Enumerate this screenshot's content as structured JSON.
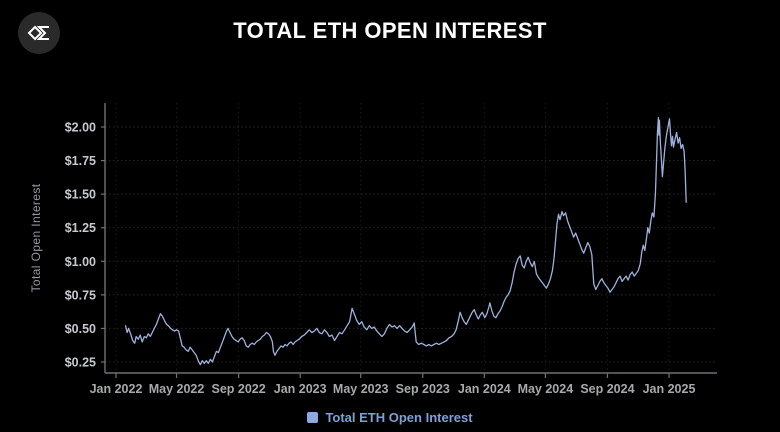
{
  "header": {
    "logo": "sigma-diamond-logo",
    "title": "TOTAL ETH OPEN INTEREST"
  },
  "legend": {
    "label": "Total ETH Open Interest",
    "swatch_color": "#8fa9dc"
  },
  "colors": {
    "background": "#000000",
    "axis": "#6e7174",
    "grid_h": "rgba(255,255,255,0.16)",
    "grid_v": "rgba(255,255,255,0.10)",
    "title_text": "#ffffff",
    "ytick_text": "#c7cacd",
    "xtick_text": "#a6a9ab",
    "line": "#9db1dd"
  },
  "chart_data": {
    "type": "line",
    "title": "TOTAL ETH OPEN INTEREST",
    "xlabel": "",
    "ylabel": "Total Open Interest",
    "grid": true,
    "legend_position": "bottom",
    "ylim": [
      0.17,
      2.16
    ],
    "xlim": [
      "2021-12-10",
      "2025-04-05"
    ],
    "yticks": [
      0.25,
      0.5,
      0.75,
      1.0,
      1.25,
      1.5,
      1.75,
      2.0
    ],
    "ytick_labels": [
      "$0.25",
      "$0.50",
      "$0.75",
      "$1.00",
      "$1.25",
      "$1.50",
      "$1.75",
      "$2.00"
    ],
    "xticks": [
      "2022-01-01",
      "2022-05-01",
      "2022-09-01",
      "2023-01-01",
      "2023-05-01",
      "2023-09-01",
      "2024-01-01",
      "2024-05-01",
      "2024-09-01",
      "2025-01-01"
    ],
    "xtick_labels": [
      "Jan 2022",
      "May 2022",
      "Sep 2022",
      "Jan 2023",
      "May 2023",
      "Sep 2023",
      "Jan 2024",
      "May 2024",
      "Sep 2024",
      "Jan 2025"
    ],
    "series": [
      {
        "name": "Total ETH Open Interest",
        "color": "#9db1dd",
        "x": [
          "2022-01-20",
          "2022-01-23",
          "2022-01-26",
          "2022-01-30",
          "2022-02-03",
          "2022-02-07",
          "2022-02-10",
          "2022-02-14",
          "2022-02-18",
          "2022-02-22",
          "2022-02-26",
          "2022-03-02",
          "2022-03-06",
          "2022-03-10",
          "2022-03-14",
          "2022-03-18",
          "2022-03-22",
          "2022-03-26",
          "2022-03-30",
          "2022-04-03",
          "2022-04-07",
          "2022-04-11",
          "2022-04-15",
          "2022-04-19",
          "2022-04-23",
          "2022-04-27",
          "2022-05-01",
          "2022-05-05",
          "2022-05-09",
          "2022-05-12",
          "2022-05-16",
          "2022-05-20",
          "2022-05-24",
          "2022-05-28",
          "2022-06-01",
          "2022-06-05",
          "2022-06-09",
          "2022-06-13",
          "2022-06-17",
          "2022-06-21",
          "2022-06-25",
          "2022-06-29",
          "2022-07-03",
          "2022-07-07",
          "2022-07-11",
          "2022-07-15",
          "2022-07-19",
          "2022-07-23",
          "2022-07-27",
          "2022-07-31",
          "2022-08-04",
          "2022-08-08",
          "2022-08-11",
          "2022-08-15",
          "2022-08-19",
          "2022-08-23",
          "2022-08-27",
          "2022-08-31",
          "2022-09-04",
          "2022-09-08",
          "2022-09-12",
          "2022-09-16",
          "2022-09-20",
          "2022-09-24",
          "2022-09-28",
          "2022-10-02",
          "2022-10-06",
          "2022-10-10",
          "2022-10-14",
          "2022-10-18",
          "2022-10-22",
          "2022-10-26",
          "2022-10-30",
          "2022-11-03",
          "2022-11-07",
          "2022-11-09",
          "2022-11-12",
          "2022-11-16",
          "2022-11-20",
          "2022-11-24",
          "2022-11-28",
          "2022-12-02",
          "2022-12-06",
          "2022-12-10",
          "2022-12-14",
          "2022-12-18",
          "2022-12-22",
          "2022-12-26",
          "2022-12-30",
          "2023-01-04",
          "2023-01-09",
          "2023-01-14",
          "2023-01-19",
          "2023-01-24",
          "2023-01-29",
          "2023-02-03",
          "2023-02-08",
          "2023-02-13",
          "2023-02-18",
          "2023-02-23",
          "2023-02-28",
          "2023-03-05",
          "2023-03-10",
          "2023-03-15",
          "2023-03-20",
          "2023-03-25",
          "2023-03-30",
          "2023-04-04",
          "2023-04-09",
          "2023-04-14",
          "2023-04-18",
          "2023-04-23",
          "2023-04-28",
          "2023-05-03",
          "2023-05-08",
          "2023-05-13",
          "2023-05-18",
          "2023-05-23",
          "2023-05-28",
          "2023-06-02",
          "2023-06-07",
          "2023-06-12",
          "2023-06-17",
          "2023-06-22",
          "2023-06-27",
          "2023-07-02",
          "2023-07-07",
          "2023-07-12",
          "2023-07-17",
          "2023-07-22",
          "2023-07-27",
          "2023-08-01",
          "2023-08-06",
          "2023-08-11",
          "2023-08-15",
          "2023-08-17",
          "2023-08-19",
          "2023-08-24",
          "2023-08-29",
          "2023-09-03",
          "2023-09-08",
          "2023-09-13",
          "2023-09-18",
          "2023-09-23",
          "2023-09-28",
          "2023-10-03",
          "2023-10-08",
          "2023-10-13",
          "2023-10-18",
          "2023-10-23",
          "2023-10-28",
          "2023-11-02",
          "2023-11-06",
          "2023-11-10",
          "2023-11-14",
          "2023-11-18",
          "2023-11-22",
          "2023-11-26",
          "2023-11-30",
          "2023-12-04",
          "2023-12-08",
          "2023-12-12",
          "2023-12-16",
          "2023-12-20",
          "2023-12-24",
          "2023-12-28",
          "2024-01-02",
          "2024-01-06",
          "2024-01-10",
          "2024-01-12",
          "2024-01-16",
          "2024-01-20",
          "2024-01-24",
          "2024-01-28",
          "2024-02-01",
          "2024-02-05",
          "2024-02-09",
          "2024-02-13",
          "2024-02-17",
          "2024-02-21",
          "2024-02-25",
          "2024-02-29",
          "2024-03-04",
          "2024-03-08",
          "2024-03-12",
          "2024-03-16",
          "2024-03-20",
          "2024-03-24",
          "2024-03-28",
          "2024-04-01",
          "2024-04-05",
          "2024-04-09",
          "2024-04-13",
          "2024-04-17",
          "2024-04-21",
          "2024-04-25",
          "2024-04-29",
          "2024-05-03",
          "2024-05-07",
          "2024-05-11",
          "2024-05-15",
          "2024-05-18",
          "2024-05-21",
          "2024-05-24",
          "2024-05-27",
          "2024-05-30",
          "2024-06-03",
          "2024-06-06",
          "2024-06-10",
          "2024-06-14",
          "2024-06-18",
          "2024-06-22",
          "2024-06-26",
          "2024-06-30",
          "2024-07-04",
          "2024-07-08",
          "2024-07-12",
          "2024-07-16",
          "2024-07-20",
          "2024-07-24",
          "2024-07-28",
          "2024-08-01",
          "2024-08-05",
          "2024-08-09",
          "2024-08-13",
          "2024-08-17",
          "2024-08-21",
          "2024-08-25",
          "2024-08-29",
          "2024-09-02",
          "2024-09-06",
          "2024-09-10",
          "2024-09-14",
          "2024-09-18",
          "2024-09-22",
          "2024-09-26",
          "2024-09-30",
          "2024-10-04",
          "2024-10-08",
          "2024-10-12",
          "2024-10-16",
          "2024-10-20",
          "2024-10-24",
          "2024-10-28",
          "2024-11-01",
          "2024-11-05",
          "2024-11-08",
          "2024-11-11",
          "2024-11-14",
          "2024-11-17",
          "2024-11-20",
          "2024-11-23",
          "2024-11-26",
          "2024-11-29",
          "2024-12-02",
          "2024-12-05",
          "2024-12-07",
          "2024-12-09",
          "2024-12-11",
          "2024-12-12",
          "2024-12-13",
          "2024-12-15",
          "2024-12-17",
          "2024-12-19",
          "2024-12-21",
          "2024-12-24",
          "2024-12-27",
          "2024-12-30",
          "2025-01-02",
          "2025-01-04",
          "2025-01-06",
          "2025-01-08",
          "2025-01-10",
          "2025-01-13",
          "2025-01-16",
          "2025-01-19",
          "2025-01-22",
          "2025-01-25",
          "2025-01-28",
          "2025-01-31",
          "2025-02-02",
          "2025-02-04"
        ],
        "values": [
          0.52,
          0.47,
          0.5,
          0.46,
          0.41,
          0.39,
          0.44,
          0.42,
          0.45,
          0.4,
          0.44,
          0.43,
          0.46,
          0.44,
          0.47,
          0.5,
          0.53,
          0.57,
          0.61,
          0.59,
          0.56,
          0.53,
          0.52,
          0.5,
          0.49,
          0.48,
          0.49,
          0.48,
          0.42,
          0.37,
          0.36,
          0.34,
          0.33,
          0.36,
          0.34,
          0.32,
          0.3,
          0.26,
          0.23,
          0.26,
          0.24,
          0.26,
          0.24,
          0.27,
          0.25,
          0.29,
          0.33,
          0.32,
          0.36,
          0.4,
          0.44,
          0.48,
          0.5,
          0.47,
          0.44,
          0.42,
          0.41,
          0.4,
          0.42,
          0.43,
          0.41,
          0.37,
          0.36,
          0.38,
          0.39,
          0.38,
          0.4,
          0.41,
          0.42,
          0.44,
          0.45,
          0.47,
          0.46,
          0.44,
          0.4,
          0.33,
          0.3,
          0.33,
          0.35,
          0.37,
          0.36,
          0.38,
          0.37,
          0.39,
          0.4,
          0.38,
          0.4,
          0.41,
          0.42,
          0.44,
          0.45,
          0.47,
          0.49,
          0.47,
          0.48,
          0.5,
          0.47,
          0.46,
          0.49,
          0.47,
          0.44,
          0.45,
          0.41,
          0.44,
          0.47,
          0.46,
          0.49,
          0.52,
          0.55,
          0.65,
          0.61,
          0.56,
          0.53,
          0.55,
          0.51,
          0.49,
          0.52,
          0.5,
          0.51,
          0.48,
          0.46,
          0.44,
          0.46,
          0.5,
          0.53,
          0.51,
          0.52,
          0.5,
          0.52,
          0.5,
          0.48,
          0.47,
          0.49,
          0.51,
          0.54,
          0.47,
          0.4,
          0.38,
          0.39,
          0.38,
          0.37,
          0.38,
          0.37,
          0.38,
          0.39,
          0.38,
          0.39,
          0.4,
          0.41,
          0.43,
          0.44,
          0.46,
          0.49,
          0.55,
          0.62,
          0.58,
          0.55,
          0.53,
          0.56,
          0.59,
          0.62,
          0.64,
          0.6,
          0.57,
          0.6,
          0.62,
          0.58,
          0.61,
          0.66,
          0.69,
          0.63,
          0.59,
          0.58,
          0.61,
          0.63,
          0.66,
          0.7,
          0.73,
          0.75,
          0.78,
          0.84,
          0.92,
          0.98,
          1.02,
          1.04,
          0.97,
          0.95,
          1.0,
          1.03,
          0.99,
          0.96,
          1.0,
          0.91,
          0.88,
          0.86,
          0.84,
          0.82,
          0.8,
          0.83,
          0.87,
          0.93,
          1.02,
          1.15,
          1.28,
          1.35,
          1.31,
          1.37,
          1.34,
          1.36,
          1.3,
          1.26,
          1.22,
          1.18,
          1.21,
          1.17,
          1.13,
          1.09,
          1.06,
          1.1,
          1.14,
          1.11,
          1.05,
          0.83,
          0.79,
          0.82,
          0.85,
          0.87,
          0.84,
          0.82,
          0.8,
          0.77,
          0.79,
          0.81,
          0.84,
          0.87,
          0.89,
          0.85,
          0.87,
          0.89,
          0.86,
          0.9,
          0.92,
          0.89,
          0.91,
          0.93,
          0.98,
          1.07,
          1.12,
          1.08,
          1.16,
          1.25,
          1.21,
          1.3,
          1.36,
          1.33,
          1.5,
          1.72,
          1.95,
          2.07,
          1.94,
          2.05,
          1.88,
          1.76,
          1.63,
          1.72,
          1.85,
          1.94,
          2.0,
          2.06,
          1.95,
          1.86,
          1.93,
          1.85,
          1.91,
          1.96,
          1.88,
          1.92,
          1.84,
          1.87,
          1.82,
          1.68,
          1.44
        ]
      }
    ]
  }
}
